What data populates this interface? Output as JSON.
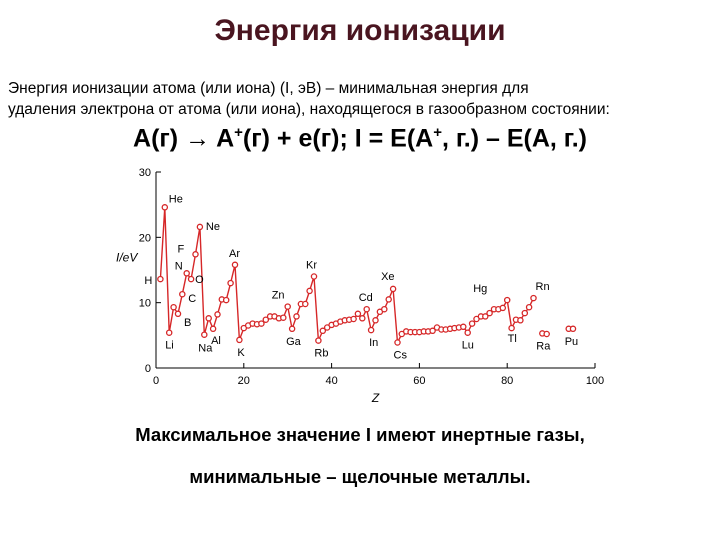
{
  "slide": {
    "title": "Энергия ионизации",
    "definition": {
      "term": "Энергия ионизации атома (или иона)",
      "notation": "(I, эВ)",
      "text_line1": " – минимальная энергия для",
      "text_line2": "удаления электрона от атома (или иона), находящегося в газообразном состоянии:"
    },
    "equation": {
      "left": "A(г) → A",
      "plus_sup": "+",
      "mid": "(г)  +  e(г); I = E(A",
      "right": ", г.) – E(A, г.)"
    },
    "conclusion_line1": "Максимальное значение I имеют инертные газы,",
    "conclusion_line2": "минимальные – щелочные металлы."
  },
  "chart_data": {
    "type": "line",
    "xlabel": "Z",
    "ylabel": "I/eV",
    "xlim": [
      0,
      100
    ],
    "ylim": [
      0,
      30
    ],
    "xticks": [
      0,
      20,
      40,
      60,
      80,
      100
    ],
    "yticks": [
      0,
      10,
      20,
      30
    ],
    "grid": false,
    "color": "#d62728",
    "series": [
      {
        "x": [
          1,
          2,
          3,
          4,
          5,
          6,
          7,
          8,
          9,
          10,
          11,
          12,
          13,
          14,
          15,
          16,
          17,
          18,
          19,
          20,
          21,
          22,
          23,
          24,
          25,
          26,
          27,
          28,
          29,
          30,
          31,
          32,
          33,
          34,
          35,
          36,
          37,
          38,
          39,
          40,
          41,
          42,
          43,
          44,
          45,
          46,
          47,
          48,
          49,
          50,
          51,
          52,
          53,
          54,
          55,
          56,
          57,
          58,
          59,
          60,
          61,
          62,
          63,
          64,
          65,
          66,
          67,
          68,
          69,
          70,
          71,
          72,
          73,
          74,
          75,
          76,
          77,
          78,
          79,
          80,
          81,
          82,
          83,
          84,
          85,
          86
        ],
        "values": [
          13.6,
          24.6,
          5.4,
          9.3,
          8.3,
          11.3,
          14.5,
          13.6,
          17.4,
          21.6,
          5.1,
          7.6,
          6.0,
          8.2,
          10.5,
          10.4,
          13.0,
          15.8,
          4.3,
          6.1,
          6.5,
          6.8,
          6.7,
          6.8,
          7.4,
          7.9,
          7.9,
          7.6,
          7.7,
          9.4,
          6.0,
          7.9,
          9.8,
          9.8,
          11.8,
          14.0,
          4.2,
          5.7,
          6.2,
          6.6,
          6.8,
          7.1,
          7.3,
          7.4,
          7.5,
          8.3,
          7.6,
          9.0,
          5.8,
          7.3,
          8.6,
          9.0,
          10.5,
          12.1,
          3.9,
          5.2,
          5.6,
          5.5,
          5.5,
          5.5,
          5.6,
          5.6,
          5.7,
          6.2,
          5.9,
          5.9,
          6.0,
          6.1,
          6.2,
          6.3,
          5.4,
          6.8,
          7.5,
          7.9,
          7.9,
          8.4,
          9.0,
          9.0,
          9.2,
          10.4,
          6.1,
          7.4,
          7.3,
          8.4,
          9.3,
          10.7
        ]
      },
      {
        "x": [
          88,
          89,
          94,
          95
        ],
        "values": [
          5.3,
          5.2,
          6.0,
          6.0
        ]
      }
    ],
    "element_labels": [
      {
        "text": "H",
        "z": 1,
        "i": 13.6
      },
      {
        "text": "He",
        "z": 2,
        "i": 24.6
      },
      {
        "text": "Li",
        "z": 3,
        "i": 5.4
      },
      {
        "text": "B",
        "z": 5,
        "i": 8.3
      },
      {
        "text": "C",
        "z": 6,
        "i": 11.3
      },
      {
        "text": "N",
        "z": 7,
        "i": 14.5
      },
      {
        "text": "O",
        "z": 8,
        "i": 13.6
      },
      {
        "text": "F",
        "z": 9,
        "i": 17.4
      },
      {
        "text": "Ne",
        "z": 10,
        "i": 21.6
      },
      {
        "text": "Na",
        "z": 11,
        "i": 5.1
      },
      {
        "text": "Al",
        "z": 13,
        "i": 6.0
      },
      {
        "text": "Ar",
        "z": 18,
        "i": 15.8
      },
      {
        "text": "K",
        "z": 19,
        "i": 4.3
      },
      {
        "text": "Zn",
        "z": 30,
        "i": 9.4
      },
      {
        "text": "Ga",
        "z": 31,
        "i": 6.0
      },
      {
        "text": "Kr",
        "z": 36,
        "i": 14.0
      },
      {
        "text": "Rb",
        "z": 37,
        "i": 4.2
      },
      {
        "text": "Cd",
        "z": 48,
        "i": 9.0
      },
      {
        "text": "In",
        "z": 49,
        "i": 5.8
      },
      {
        "text": "Xe",
        "z": 54,
        "i": 12.1
      },
      {
        "text": "Cs",
        "z": 55,
        "i": 3.9
      },
      {
        "text": "Lu",
        "z": 71,
        "i": 5.4
      },
      {
        "text": "Hg",
        "z": 80,
        "i": 10.4
      },
      {
        "text": "Tl",
        "z": 81,
        "i": 6.1
      },
      {
        "text": "Rn",
        "z": 86,
        "i": 10.7
      },
      {
        "text": "Ra",
        "z": 88,
        "i": 5.3
      },
      {
        "text": "Pu",
        "z": 94,
        "i": 6.0
      }
    ]
  }
}
